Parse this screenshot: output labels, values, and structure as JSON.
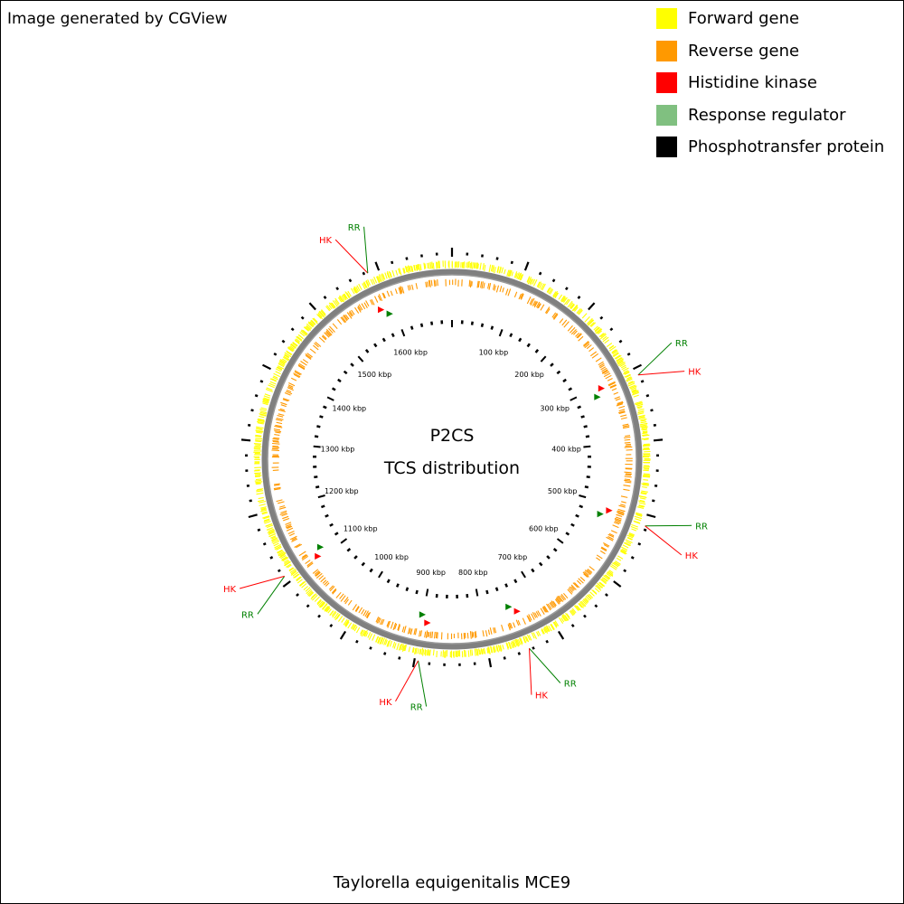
{
  "credit": "Image generated by CGView",
  "footer": "Taylorella equigenitalis MCE9",
  "center": {
    "title": "P2CS",
    "subtitle": "TCS distribution"
  },
  "colors": {
    "forward": "#ffff00",
    "reverse": "#ff9900",
    "histidine_kinase": "#ff0000",
    "response_regulator": "#80c080",
    "response_regulator_marker": "#008000",
    "phosphotransfer": "#000000",
    "backbone": "#808080"
  },
  "legend": [
    {
      "label": "Forward gene",
      "color": "#ffff00"
    },
    {
      "label": "Reverse gene",
      "color": "#ff9900"
    },
    {
      "label": "Histidine kinase",
      "color": "#ff0000"
    },
    {
      "label": "Response regulator",
      "color": "#80c080"
    },
    {
      "label": "Phosphotransfer protein",
      "color": "#000000"
    }
  ],
  "genome": {
    "length_kbp": 1700,
    "ticks_kbp": [
      "100 kbp",
      "200 kbp",
      "300 kbp",
      "400 kbp",
      "500 kbp",
      "600 kbp",
      "700 kbp",
      "800 kbp",
      "900 kbp",
      "1000 kbp",
      "1100 kbp",
      "1200 kbp",
      "1300 kbp",
      "1400 kbp",
      "1500 kbp",
      "1600 kbp"
    ]
  },
  "tcs_loci": [
    {
      "position_kbp": 1585,
      "labels": [
        "HK",
        "RR"
      ],
      "label_colors": [
        "#ff0000",
        "#008000"
      ]
    },
    {
      "position_kbp": 310,
      "labels": [
        "RR",
        "HK"
      ],
      "label_colors": [
        "#008000",
        "#ff0000"
      ]
    },
    {
      "position_kbp": 515,
      "labels": [
        "RR",
        "HK"
      ],
      "label_colors": [
        "#008000",
        "#ff0000"
      ]
    },
    {
      "position_kbp": 745,
      "labels": [
        "RR",
        "HK"
      ],
      "label_colors": [
        "#008000",
        "#ff0000"
      ]
    },
    {
      "position_kbp": 895,
      "labels": [
        "RR",
        "HK"
      ],
      "label_colors": [
        "#008000",
        "#ff0000"
      ]
    },
    {
      "position_kbp": 1110,
      "labels": [
        "RR",
        "HK"
      ],
      "label_colors": [
        "#008000",
        "#ff0000"
      ]
    }
  ]
}
